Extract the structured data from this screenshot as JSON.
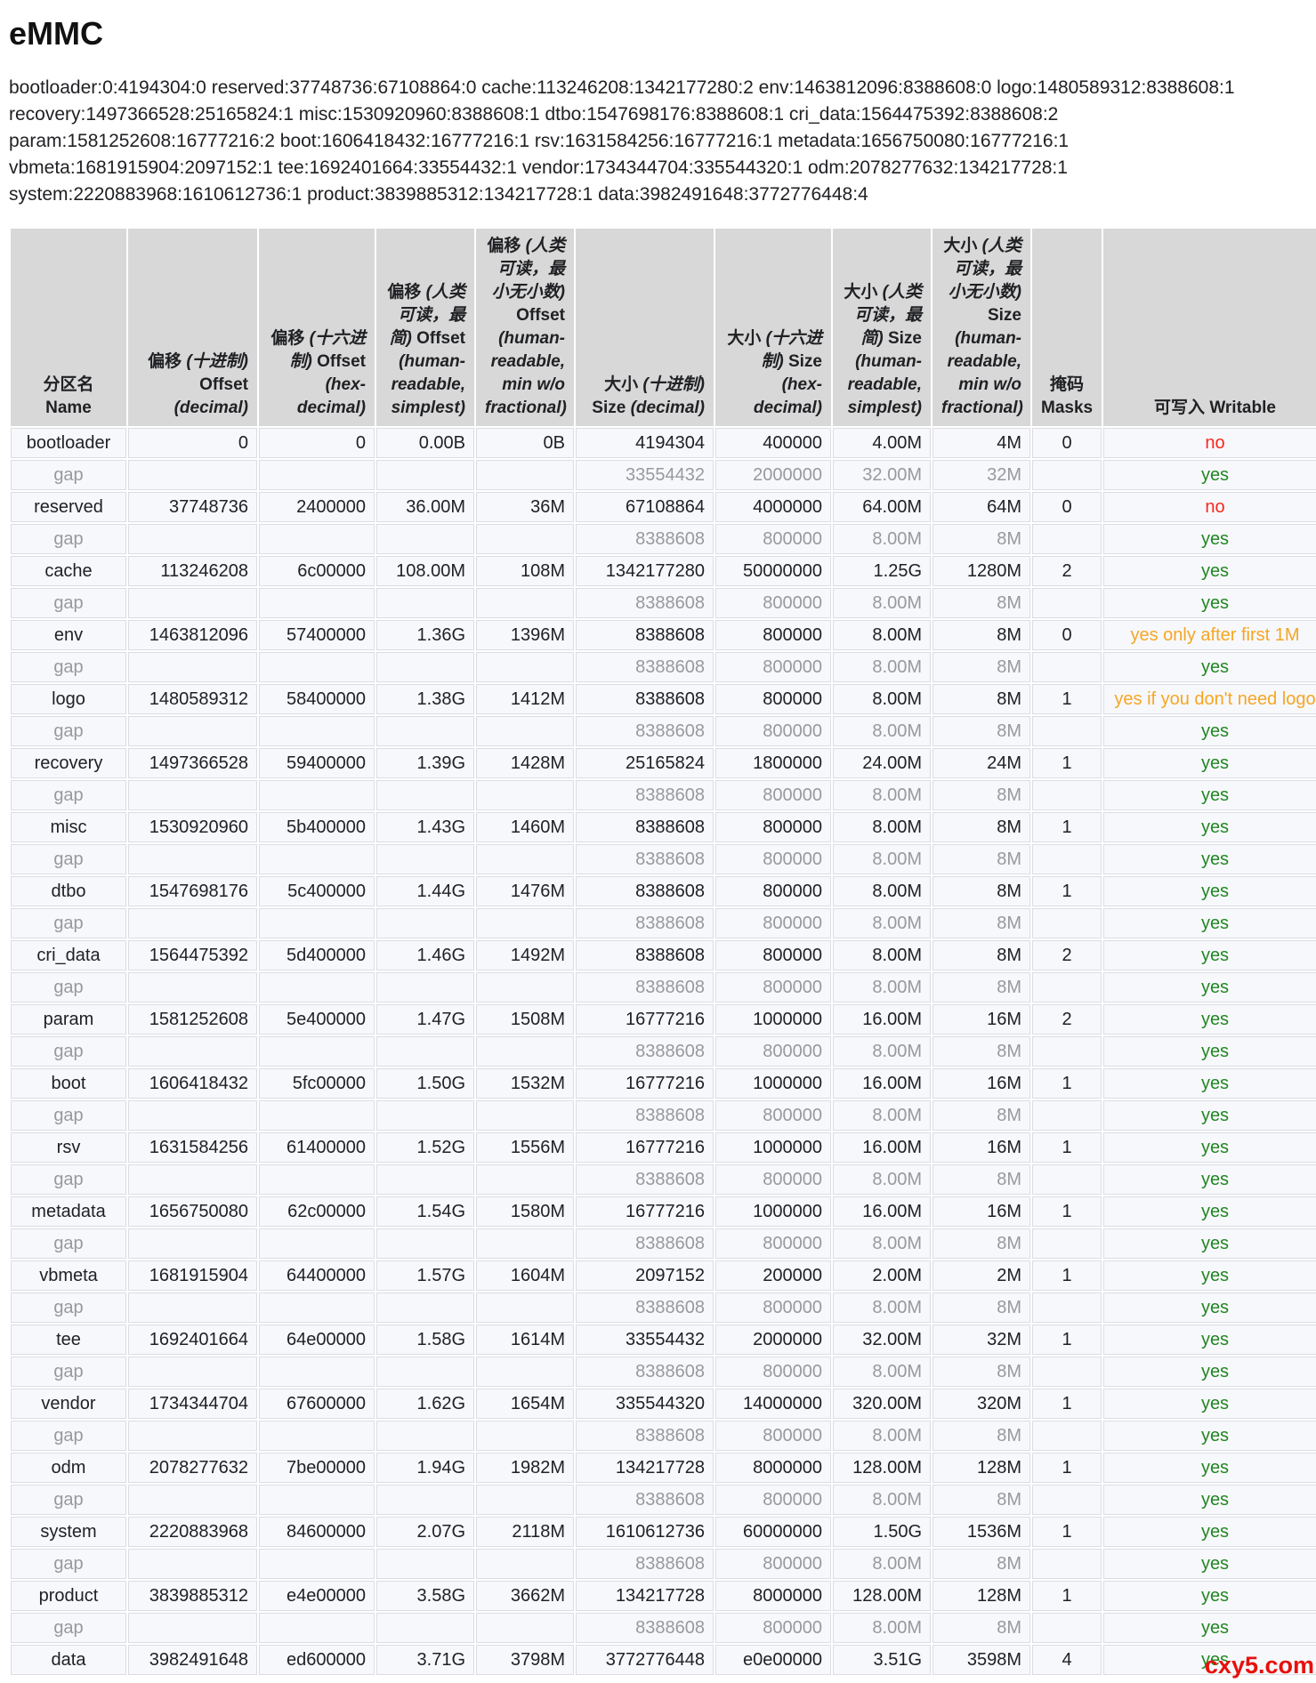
{
  "page": {
    "title": "eMMC",
    "summary": "bootloader:0:4194304:0 reserved:37748736:67108864:0 cache:113246208:1342177280:2 env:1463812096:8388608:0 logo:1480589312:8388608:1 recovery:1497366528:25165824:1 misc:1530920960:8388608:1 dtbo:1547698176:8388608:1 cri_data:1564475392:8388608:2 param:1581252608:16777216:2 boot:1606418432:16777216:1 rsv:1631584256:16777216:1 metadata:1656750080:16777216:1 vbmeta:1681915904:2097152:1 tee:1692401664:33554432:1 vendor:1734344704:335544320:1 odm:2078277632:134217728:1 system:2220883968:1610612736:1 product:3839885312:134217728:1 data:3982491648:3772776448:4",
    "watermark": "cxy5.com"
  },
  "colors": {
    "writable_yes": "#218721",
    "writable_no": "#f7281c",
    "writable_conditional": "#f6a623",
    "gap_text": "#97999c",
    "header_bg": "#d8d8d8",
    "cell_bg": "#f7f8fc",
    "watermark": "#e8100c"
  },
  "table": {
    "headers": [
      "分区名 Name",
      "偏移 (十进制) Offset (decimal)",
      "偏移 (十六进制) Offset (hex-decimal)",
      "偏移 (人类可读，最简) Offset (human-readable, simplest)",
      "偏移 (人类可读，最小无小数) Offset (human-readable, min w/o fractional)",
      "大小 (十进制) Size (decimal)",
      "大小 (十六进制) Size (hex-decimal)",
      "大小 (人类可读，最简) Size (human-readable, simplest)",
      "大小 (人类可读，最小无小数) Size (human-readable, min w/o fractional)",
      "掩码 Masks",
      "可写入 Writable"
    ],
    "rows": [
      {
        "type": "partition",
        "writable": "no",
        "cells": [
          "bootloader",
          "0",
          "0",
          "0.00B",
          "0B",
          "4194304",
          "400000",
          "4.00M",
          "4M",
          "0",
          "no"
        ]
      },
      {
        "type": "gap",
        "writable": "yes",
        "cells": [
          "gap",
          "",
          "",
          "",
          "",
          "33554432",
          "2000000",
          "32.00M",
          "32M",
          "",
          "yes"
        ]
      },
      {
        "type": "partition",
        "writable": "no",
        "cells": [
          "reserved",
          "37748736",
          "2400000",
          "36.00M",
          "36M",
          "67108864",
          "4000000",
          "64.00M",
          "64M",
          "0",
          "no"
        ]
      },
      {
        "type": "gap",
        "writable": "yes",
        "cells": [
          "gap",
          "",
          "",
          "",
          "",
          "8388608",
          "800000",
          "8.00M",
          "8M",
          "",
          "yes"
        ]
      },
      {
        "type": "partition",
        "writable": "yes",
        "cells": [
          "cache",
          "113246208",
          "6c00000",
          "108.00M",
          "108M",
          "1342177280",
          "50000000",
          "1.25G",
          "1280M",
          "2",
          "yes"
        ]
      },
      {
        "type": "gap",
        "writable": "yes",
        "cells": [
          "gap",
          "",
          "",
          "",
          "",
          "8388608",
          "800000",
          "8.00M",
          "8M",
          "",
          "yes"
        ]
      },
      {
        "type": "partition",
        "writable": "conditional",
        "cells": [
          "env",
          "1463812096",
          "57400000",
          "1.36G",
          "1396M",
          "8388608",
          "800000",
          "8.00M",
          "8M",
          "0",
          "yes only after first 1M"
        ]
      },
      {
        "type": "gap",
        "writable": "yes",
        "cells": [
          "gap",
          "",
          "",
          "",
          "",
          "8388608",
          "800000",
          "8.00M",
          "8M",
          "",
          "yes"
        ]
      },
      {
        "type": "partition",
        "writable": "conditional",
        "cells": [
          "logo",
          "1480589312",
          "58400000",
          "1.38G",
          "1412M",
          "8388608",
          "800000",
          "8.00M",
          "8M",
          "1",
          "yes if you don't need logo"
        ]
      },
      {
        "type": "gap",
        "writable": "yes",
        "cells": [
          "gap",
          "",
          "",
          "",
          "",
          "8388608",
          "800000",
          "8.00M",
          "8M",
          "",
          "yes"
        ]
      },
      {
        "type": "partition",
        "writable": "yes",
        "cells": [
          "recovery",
          "1497366528",
          "59400000",
          "1.39G",
          "1428M",
          "25165824",
          "1800000",
          "24.00M",
          "24M",
          "1",
          "yes"
        ]
      },
      {
        "type": "gap",
        "writable": "yes",
        "cells": [
          "gap",
          "",
          "",
          "",
          "",
          "8388608",
          "800000",
          "8.00M",
          "8M",
          "",
          "yes"
        ]
      },
      {
        "type": "partition",
        "writable": "yes",
        "cells": [
          "misc",
          "1530920960",
          "5b400000",
          "1.43G",
          "1460M",
          "8388608",
          "800000",
          "8.00M",
          "8M",
          "1",
          "yes"
        ]
      },
      {
        "type": "gap",
        "writable": "yes",
        "cells": [
          "gap",
          "",
          "",
          "",
          "",
          "8388608",
          "800000",
          "8.00M",
          "8M",
          "",
          "yes"
        ]
      },
      {
        "type": "partition",
        "writable": "yes",
        "cells": [
          "dtbo",
          "1547698176",
          "5c400000",
          "1.44G",
          "1476M",
          "8388608",
          "800000",
          "8.00M",
          "8M",
          "1",
          "yes"
        ]
      },
      {
        "type": "gap",
        "writable": "yes",
        "cells": [
          "gap",
          "",
          "",
          "",
          "",
          "8388608",
          "800000",
          "8.00M",
          "8M",
          "",
          "yes"
        ]
      },
      {
        "type": "partition",
        "writable": "yes",
        "cells": [
          "cri_data",
          "1564475392",
          "5d400000",
          "1.46G",
          "1492M",
          "8388608",
          "800000",
          "8.00M",
          "8M",
          "2",
          "yes"
        ]
      },
      {
        "type": "gap",
        "writable": "yes",
        "cells": [
          "gap",
          "",
          "",
          "",
          "",
          "8388608",
          "800000",
          "8.00M",
          "8M",
          "",
          "yes"
        ]
      },
      {
        "type": "partition",
        "writable": "yes",
        "cells": [
          "param",
          "1581252608",
          "5e400000",
          "1.47G",
          "1508M",
          "16777216",
          "1000000",
          "16.00M",
          "16M",
          "2",
          "yes"
        ]
      },
      {
        "type": "gap",
        "writable": "yes",
        "cells": [
          "gap",
          "",
          "",
          "",
          "",
          "8388608",
          "800000",
          "8.00M",
          "8M",
          "",
          "yes"
        ]
      },
      {
        "type": "partition",
        "writable": "yes",
        "cells": [
          "boot",
          "1606418432",
          "5fc00000",
          "1.50G",
          "1532M",
          "16777216",
          "1000000",
          "16.00M",
          "16M",
          "1",
          "yes"
        ]
      },
      {
        "type": "gap",
        "writable": "yes",
        "cells": [
          "gap",
          "",
          "",
          "",
          "",
          "8388608",
          "800000",
          "8.00M",
          "8M",
          "",
          "yes"
        ]
      },
      {
        "type": "partition",
        "writable": "yes",
        "cells": [
          "rsv",
          "1631584256",
          "61400000",
          "1.52G",
          "1556M",
          "16777216",
          "1000000",
          "16.00M",
          "16M",
          "1",
          "yes"
        ]
      },
      {
        "type": "gap",
        "writable": "yes",
        "cells": [
          "gap",
          "",
          "",
          "",
          "",
          "8388608",
          "800000",
          "8.00M",
          "8M",
          "",
          "yes"
        ]
      },
      {
        "type": "partition",
        "writable": "yes",
        "cells": [
          "metadata",
          "1656750080",
          "62c00000",
          "1.54G",
          "1580M",
          "16777216",
          "1000000",
          "16.00M",
          "16M",
          "1",
          "yes"
        ]
      },
      {
        "type": "gap",
        "writable": "yes",
        "cells": [
          "gap",
          "",
          "",
          "",
          "",
          "8388608",
          "800000",
          "8.00M",
          "8M",
          "",
          "yes"
        ]
      },
      {
        "type": "partition",
        "writable": "yes",
        "cells": [
          "vbmeta",
          "1681915904",
          "64400000",
          "1.57G",
          "1604M",
          "2097152",
          "200000",
          "2.00M",
          "2M",
          "1",
          "yes"
        ]
      },
      {
        "type": "gap",
        "writable": "yes",
        "cells": [
          "gap",
          "",
          "",
          "",
          "",
          "8388608",
          "800000",
          "8.00M",
          "8M",
          "",
          "yes"
        ]
      },
      {
        "type": "partition",
        "writable": "yes",
        "cells": [
          "tee",
          "1692401664",
          "64e00000",
          "1.58G",
          "1614M",
          "33554432",
          "2000000",
          "32.00M",
          "32M",
          "1",
          "yes"
        ]
      },
      {
        "type": "gap",
        "writable": "yes",
        "cells": [
          "gap",
          "",
          "",
          "",
          "",
          "8388608",
          "800000",
          "8.00M",
          "8M",
          "",
          "yes"
        ]
      },
      {
        "type": "partition",
        "writable": "yes",
        "cells": [
          "vendor",
          "1734344704",
          "67600000",
          "1.62G",
          "1654M",
          "335544320",
          "14000000",
          "320.00M",
          "320M",
          "1",
          "yes"
        ]
      },
      {
        "type": "gap",
        "writable": "yes",
        "cells": [
          "gap",
          "",
          "",
          "",
          "",
          "8388608",
          "800000",
          "8.00M",
          "8M",
          "",
          "yes"
        ]
      },
      {
        "type": "partition",
        "writable": "yes",
        "cells": [
          "odm",
          "2078277632",
          "7be00000",
          "1.94G",
          "1982M",
          "134217728",
          "8000000",
          "128.00M",
          "128M",
          "1",
          "yes"
        ]
      },
      {
        "type": "gap",
        "writable": "yes",
        "cells": [
          "gap",
          "",
          "",
          "",
          "",
          "8388608",
          "800000",
          "8.00M",
          "8M",
          "",
          "yes"
        ]
      },
      {
        "type": "partition",
        "writable": "yes",
        "cells": [
          "system",
          "2220883968",
          "84600000",
          "2.07G",
          "2118M",
          "1610612736",
          "60000000",
          "1.50G",
          "1536M",
          "1",
          "yes"
        ]
      },
      {
        "type": "gap",
        "writable": "yes",
        "cells": [
          "gap",
          "",
          "",
          "",
          "",
          "8388608",
          "800000",
          "8.00M",
          "8M",
          "",
          "yes"
        ]
      },
      {
        "type": "partition",
        "writable": "yes",
        "cells": [
          "product",
          "3839885312",
          "e4e00000",
          "3.58G",
          "3662M",
          "134217728",
          "8000000",
          "128.00M",
          "128M",
          "1",
          "yes"
        ]
      },
      {
        "type": "gap",
        "writable": "yes",
        "cells": [
          "gap",
          "",
          "",
          "",
          "",
          "8388608",
          "800000",
          "8.00M",
          "8M",
          "",
          "yes"
        ]
      },
      {
        "type": "partition",
        "writable": "yes",
        "cells": [
          "data",
          "3982491648",
          "ed600000",
          "3.71G",
          "3798M",
          "3772776448",
          "e0e00000",
          "3.51G",
          "3598M",
          "4",
          "yes"
        ]
      }
    ]
  }
}
